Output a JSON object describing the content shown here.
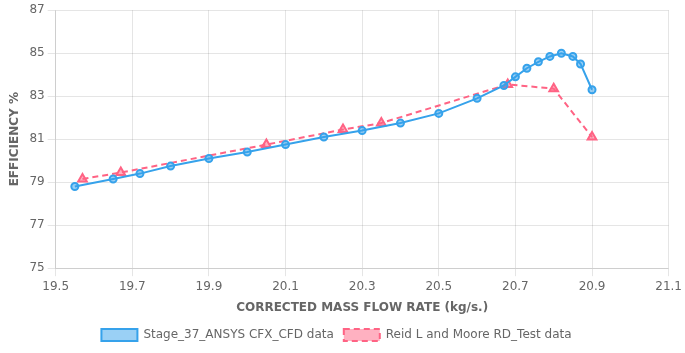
{
  "chart_data": {
    "type": "line",
    "x_label": "CORRECTED MASS FLOW RATE (kg/s.)",
    "y_label": "EFFICIENCY %",
    "series": [
      {
        "name": "Stage_37_ANSYS CFX_CFD data",
        "x": [
          19.55,
          19.65,
          19.72,
          19.8,
          19.9,
          20.0,
          20.1,
          20.2,
          20.3,
          20.4,
          20.5,
          20.6,
          20.67,
          20.7,
          20.73,
          20.76,
          20.79,
          20.82,
          20.85,
          20.87,
          20.9
        ],
        "values": [
          78.8,
          79.15,
          79.4,
          79.75,
          80.1,
          80.4,
          80.75,
          81.1,
          81.4,
          81.75,
          82.2,
          82.9,
          83.5,
          83.9,
          84.3,
          84.6,
          84.85,
          85.0,
          84.85,
          84.5,
          83.3
        ],
        "marker": "circle",
        "line_style": "solid"
      },
      {
        "name": "Reid L and Moore RD_Test data",
        "x": [
          19.57,
          19.67,
          20.05,
          20.25,
          20.35,
          20.68,
          20.8,
          20.9
        ],
        "values": [
          79.15,
          79.45,
          80.75,
          81.45,
          81.75,
          83.55,
          83.35,
          81.1
        ],
        "marker": "triangle",
        "line_style": "dashed"
      }
    ],
    "xlim": [
      19.5,
      21.1
    ],
    "ylim": [
      75,
      87
    ],
    "xticks": [
      19.5,
      19.7,
      19.9,
      20.1,
      20.3,
      20.5,
      20.7,
      20.9,
      21.1
    ],
    "yticks": [
      75,
      77,
      79,
      81,
      83,
      85,
      87
    ],
    "grid": true,
    "legend": "bottom"
  }
}
